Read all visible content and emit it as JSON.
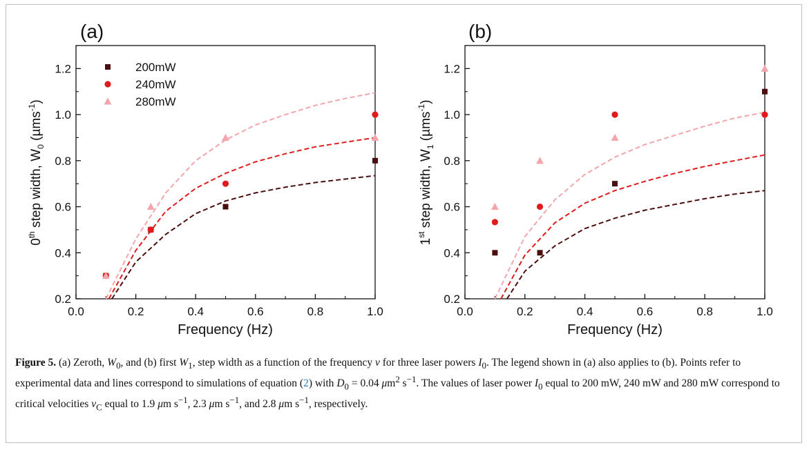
{
  "figure": {
    "caption": {
      "label": "Figure 5.",
      "p1": " (a) Zeroth, ",
      "w0": "W",
      "w0_sub": "0",
      "p2": ", and (b) first ",
      "w1": "W",
      "w1_sub": "1",
      "p3": ", step width as a function of the frequency ",
      "nu": "ν",
      "p4": " for three laser powers ",
      "i0": "I",
      "i0_sub": "0",
      "p5": ". The legend shown in (a) also applies to (b). Points refer to experimental data and lines correspond to simulations of equation (",
      "eqref": "2",
      "p6": ") with ",
      "d0": "D",
      "d0_sub": "0",
      "p7": " = 0.04 ",
      "mu1": "μ",
      "p8": "m",
      "sup2": "2",
      "p9": " s",
      "supm1a": "−1",
      "p10": ". The values of laser power ",
      "i0b": "I",
      "i0b_sub": "0",
      "p11": " equal to 200 mW, 240 mW and 280 mW correspond to critical velocities ",
      "vc": "v",
      "vc_sub": "C",
      "p12": " equal to 1.9 ",
      "mu2": "μ",
      "p13": "m s",
      "supm1b": "−1",
      "p14": ", 2.3 ",
      "mu3": "μ",
      "p15": "m s",
      "supm1c": "−1",
      "p16": ", and 2.8 ",
      "mu4": "μ",
      "p17": "m s",
      "supm1d": "−1",
      "p18": ", respectively."
    }
  },
  "colors": {
    "s200": "#4a0e0e",
    "s240": "#e11b1b",
    "s280": "#f4a5ab",
    "axis": "#111111"
  },
  "chart_data": [
    {
      "type": "scatter",
      "panel_label": "(a)",
      "xlabel": "Frequency (Hz)",
      "ylabel_pre": "0",
      "ylabel_sup": "th",
      "ylabel_mid": " step width, W",
      "ylabel_sub": "0",
      "ylabel_unit": " (µms",
      "ylabel_unit_sup": "-1",
      "ylabel_end": ")",
      "xlim": [
        0.0,
        1.0
      ],
      "ylim": [
        0.2,
        1.3
      ],
      "xticks": [
        "0.0",
        "0.2",
        "0.4",
        "0.6",
        "0.8",
        "1.0"
      ],
      "yticks": [
        "0.2",
        "0.4",
        "0.6",
        "0.8",
        "1.0",
        "1.2"
      ],
      "legend": {
        "placement": "top-left",
        "entries": [
          "200mW",
          "240mW",
          "280mW"
        ]
      },
      "series": [
        {
          "name": "200mW",
          "marker": "square",
          "x": [
            0.1,
            0.25,
            0.5,
            1.0
          ],
          "y": [
            0.3,
            0.5,
            0.6,
            0.8
          ],
          "fit": {
            "x": [
              0.12,
              0.2,
              0.3,
              0.4,
              0.5,
              0.6,
              0.7,
              0.8,
              0.9,
              1.0
            ],
            "y": [
              0.2,
              0.36,
              0.48,
              0.57,
              0.625,
              0.66,
              0.685,
              0.705,
              0.72,
              0.735
            ]
          }
        },
        {
          "name": "240mW",
          "marker": "circle",
          "x": [
            0.1,
            0.25,
            0.5,
            1.0
          ],
          "y": [
            0.3,
            0.5,
            0.7,
            1.0
          ],
          "fit": {
            "x": [
              0.11,
              0.2,
              0.3,
              0.4,
              0.5,
              0.6,
              0.7,
              0.8,
              0.9,
              1.0
            ],
            "y": [
              0.2,
              0.41,
              0.58,
              0.68,
              0.745,
              0.795,
              0.83,
              0.86,
              0.88,
              0.9
            ]
          }
        },
        {
          "name": "280mW",
          "marker": "triangle",
          "x": [
            0.1,
            0.25,
            0.5,
            1.0
          ],
          "y": [
            0.3,
            0.6,
            0.9,
            0.9
          ],
          "fit": {
            "x": [
              0.1,
              0.2,
              0.3,
              0.4,
              0.5,
              0.6,
              0.7,
              0.8,
              0.9,
              1.0
            ],
            "y": [
              0.2,
              0.46,
              0.66,
              0.8,
              0.89,
              0.955,
              1.0,
              1.04,
              1.07,
              1.095
            ]
          }
        }
      ]
    },
    {
      "type": "scatter",
      "panel_label": "(b)",
      "xlabel": "Frequency (Hz)",
      "ylabel_pre": "1",
      "ylabel_sup": "st",
      "ylabel_mid": " step width, W",
      "ylabel_sub": "1",
      "ylabel_unit": " (µms",
      "ylabel_unit_sup": "-1",
      "ylabel_end": ")",
      "xlim": [
        0.0,
        1.0
      ],
      "ylim": [
        0.2,
        1.3
      ],
      "xticks": [
        "0.0",
        "0.2",
        "0.4",
        "0.6",
        "0.8",
        "1.0"
      ],
      "yticks": [
        "0.2",
        "0.4",
        "0.6",
        "0.8",
        "1.0",
        "1.2"
      ],
      "series": [
        {
          "name": "200mW",
          "marker": "square",
          "x": [
            0.1,
            0.25,
            0.5,
            1.0
          ],
          "y": [
            0.4,
            0.4,
            0.7,
            1.1
          ],
          "fit": {
            "x": [
              0.14,
              0.2,
              0.3,
              0.4,
              0.5,
              0.6,
              0.7,
              0.8,
              0.9,
              1.0
            ],
            "y": [
              0.2,
              0.32,
              0.43,
              0.505,
              0.55,
              0.585,
              0.61,
              0.635,
              0.655,
              0.67
            ]
          }
        },
        {
          "name": "240mW",
          "marker": "circle",
          "x": [
            0.1,
            0.25,
            0.5,
            1.0
          ],
          "y": [
            0.533,
            0.6,
            1.0,
            1.0
          ],
          "fit": {
            "x": [
              0.12,
              0.2,
              0.3,
              0.4,
              0.5,
              0.6,
              0.7,
              0.8,
              0.9,
              1.0
            ],
            "y": [
              0.2,
              0.39,
              0.53,
              0.615,
              0.67,
              0.71,
              0.745,
              0.775,
              0.8,
              0.825
            ]
          }
        },
        {
          "name": "280mW",
          "marker": "triangle",
          "x": [
            0.1,
            0.25,
            0.5,
            1.0
          ],
          "y": [
            0.6,
            0.8,
            0.9,
            1.2
          ],
          "fit": {
            "x": [
              0.1,
              0.2,
              0.3,
              0.4,
              0.5,
              0.6,
              0.7,
              0.8,
              0.9,
              1.0
            ],
            "y": [
              0.2,
              0.47,
              0.63,
              0.74,
              0.815,
              0.87,
              0.91,
              0.95,
              0.985,
              1.01
            ]
          }
        }
      ]
    }
  ]
}
